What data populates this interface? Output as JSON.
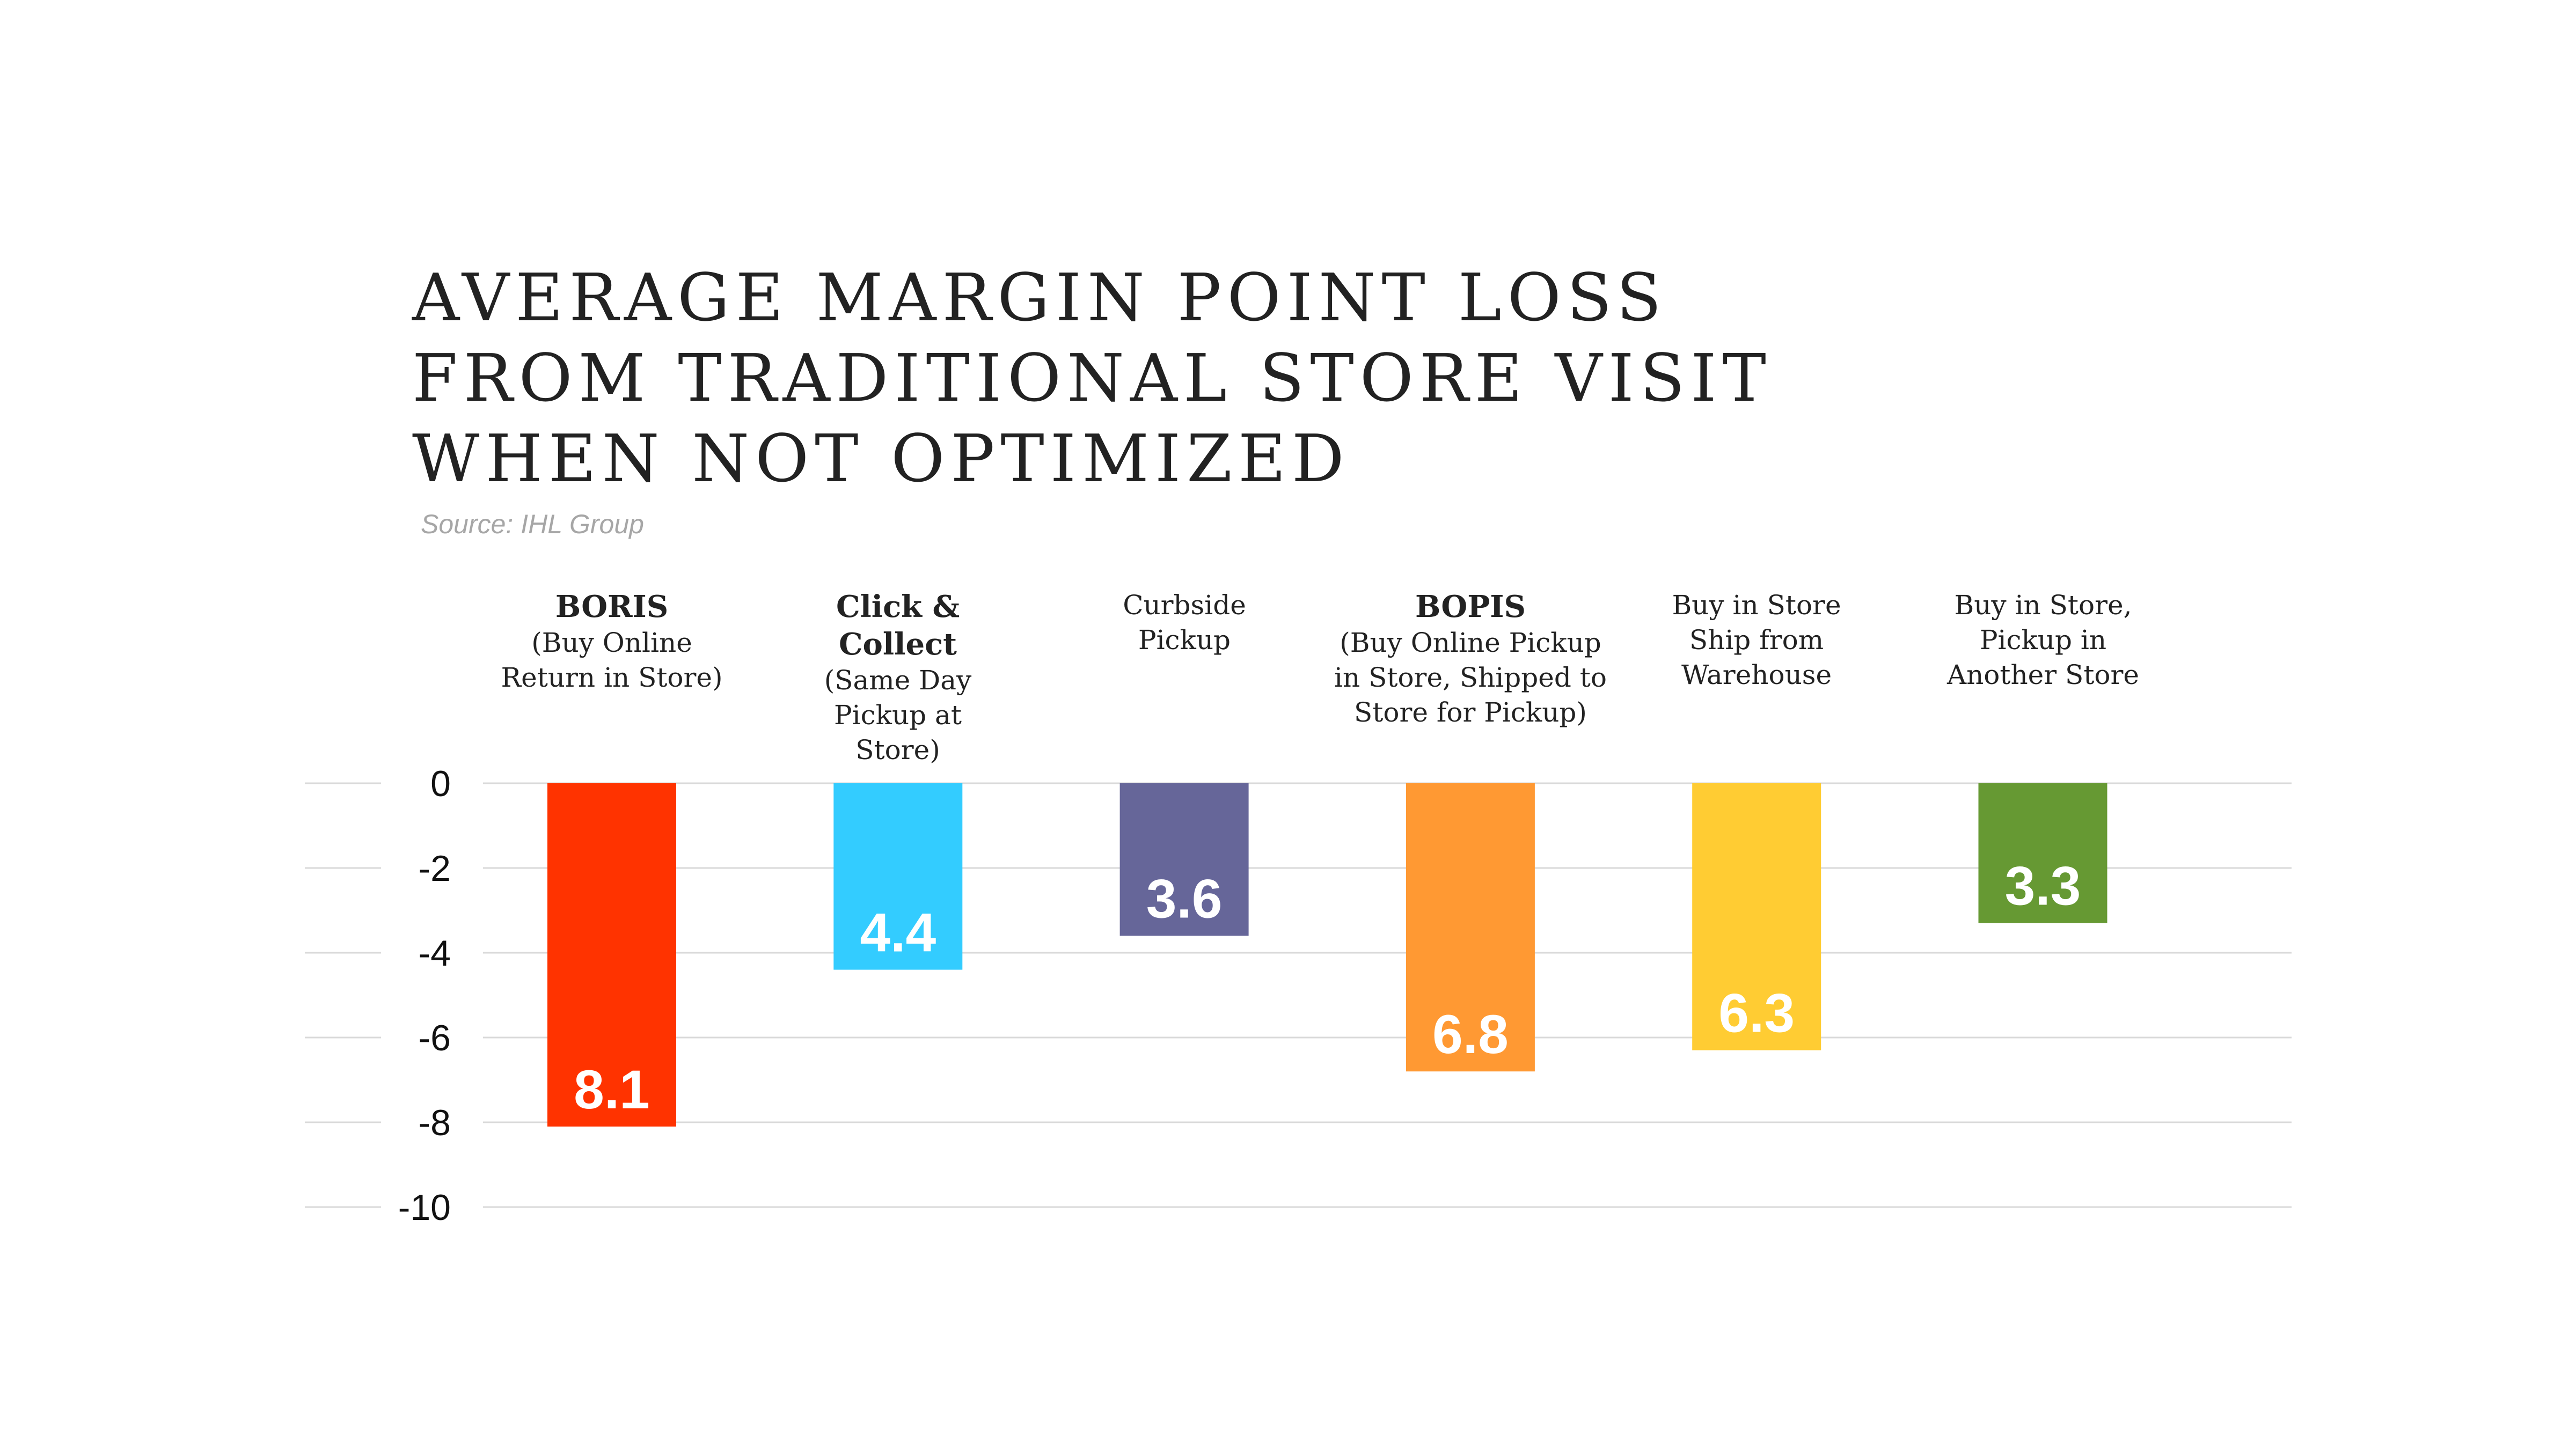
{
  "chart_data": {
    "type": "bar",
    "title": "AVERAGE MARGIN POINT LOSS\nFROM TRADITIONAL STORE VISIT\nWHEN NOT OPTIMIZED",
    "source": "Source: IHL Group",
    "categories": [
      {
        "main": "BORIS",
        "sub": "(Buy Online\nReturn in Store)"
      },
      {
        "main": "Click &\nCollect",
        "sub": "(Same Day\nPickup at\nStore)"
      },
      {
        "main": "",
        "sub": "Curbside\nPickup"
      },
      {
        "main": "BOPIS",
        "sub": "(Buy Online Pickup\nin Store, Shipped to\nStore for Pickup)"
      },
      {
        "main": "",
        "sub": "Buy in Store\nShip from\nWarehouse"
      },
      {
        "main": "",
        "sub": "Buy in Store,\nPickup in\nAnother Store"
      }
    ],
    "values": [
      -8.1,
      -4.4,
      -3.6,
      -6.8,
      -6.3,
      -3.3
    ],
    "value_labels": [
      "8.1",
      "4.4",
      "3.6",
      "6.8",
      "6.3",
      "3.3"
    ],
    "colors": [
      "#ff3300",
      "#33ccff",
      "#666699",
      "#ff9933",
      "#ffcc33",
      "#669933"
    ],
    "ylim": [
      -10,
      0
    ],
    "yticks": [
      0,
      -2,
      -4,
      -6,
      -8,
      -10
    ],
    "ytick_labels": [
      "0",
      "-2",
      "-4",
      "-6",
      "-8",
      "-10"
    ],
    "grid": true,
    "xlabel": "",
    "ylabel": ""
  }
}
